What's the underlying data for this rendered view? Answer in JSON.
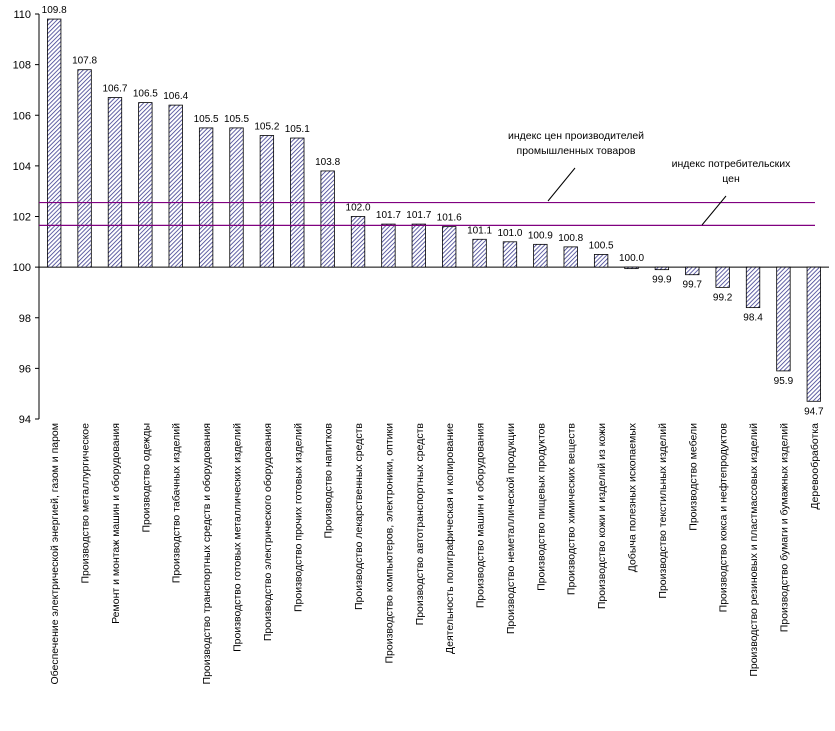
{
  "chart_data": {
    "type": "bar",
    "title": "",
    "xlabel": "",
    "ylabel": "",
    "ylim": [
      94,
      110
    ],
    "yticks": [
      94,
      96,
      98,
      100,
      102,
      104,
      106,
      108,
      110
    ],
    "baseline": 100,
    "grid": false,
    "bar_color": "#3b3b8f",
    "categories": [
      "Обеспечение электрической энергией, газом и паром",
      "Производство металлургическое",
      "Ремонт и монтаж машин и оборудования",
      "Производство одежды",
      "Производство табачных изделий",
      "Производство транспортных средств и оборудования",
      "Производство готовых металлических изделий",
      "Производство электрического оборудования",
      "Производство прочих готовых изделий",
      "Производство напитков",
      "Производство лекарственных средств",
      "Производство компьютеров, электроники, оптики",
      "Производство автотранспортных средств",
      "Деятельность полиграфическая и копирование",
      "Производство машин и оборудования",
      "Производство неметаллической продукции",
      "Производство пищевых продуктов",
      "Производство химических веществ",
      "Производство кожи и изделий из кожи",
      "Добыча полезных ископаемых",
      "Производство текстильных изделий",
      "Производство мебели",
      "Производство кокса и нефтепродуктов",
      "Производство резиновых и пластмассовых изделий",
      "Производство бумаги и бумажных изделий",
      "Деревообработка"
    ],
    "values": [
      109.8,
      107.8,
      106.7,
      106.5,
      106.4,
      105.5,
      105.5,
      105.2,
      105.1,
      103.8,
      102.0,
      101.7,
      101.7,
      101.6,
      101.1,
      101.0,
      100.9,
      100.8,
      100.5,
      100.0,
      99.9,
      99.7,
      99.2,
      98.4,
      95.9,
      94.7
    ],
    "value_labels": [
      "109.8",
      "107.8",
      "106.7",
      "106.5",
      "106.4",
      "105.5",
      "105.5",
      "105.2",
      "105.1",
      "103.8",
      "102.0",
      "101.7",
      "101.7",
      "101.6",
      "101.1",
      "101.0",
      "100.9",
      "100.8",
      "100.5",
      "100.0",
      "99.9",
      "99.7",
      "99.2",
      "98.4",
      "95.9",
      "94.7"
    ],
    "reference_lines": [
      {
        "label_lines": [
          "индекс цен производителей",
          "промышленных  товаров"
        ],
        "value": 102.55,
        "color": "#800080"
      },
      {
        "label_lines": [
          "индекс потребительских",
          "цен"
        ],
        "value": 101.65,
        "color": "#800080"
      }
    ]
  }
}
